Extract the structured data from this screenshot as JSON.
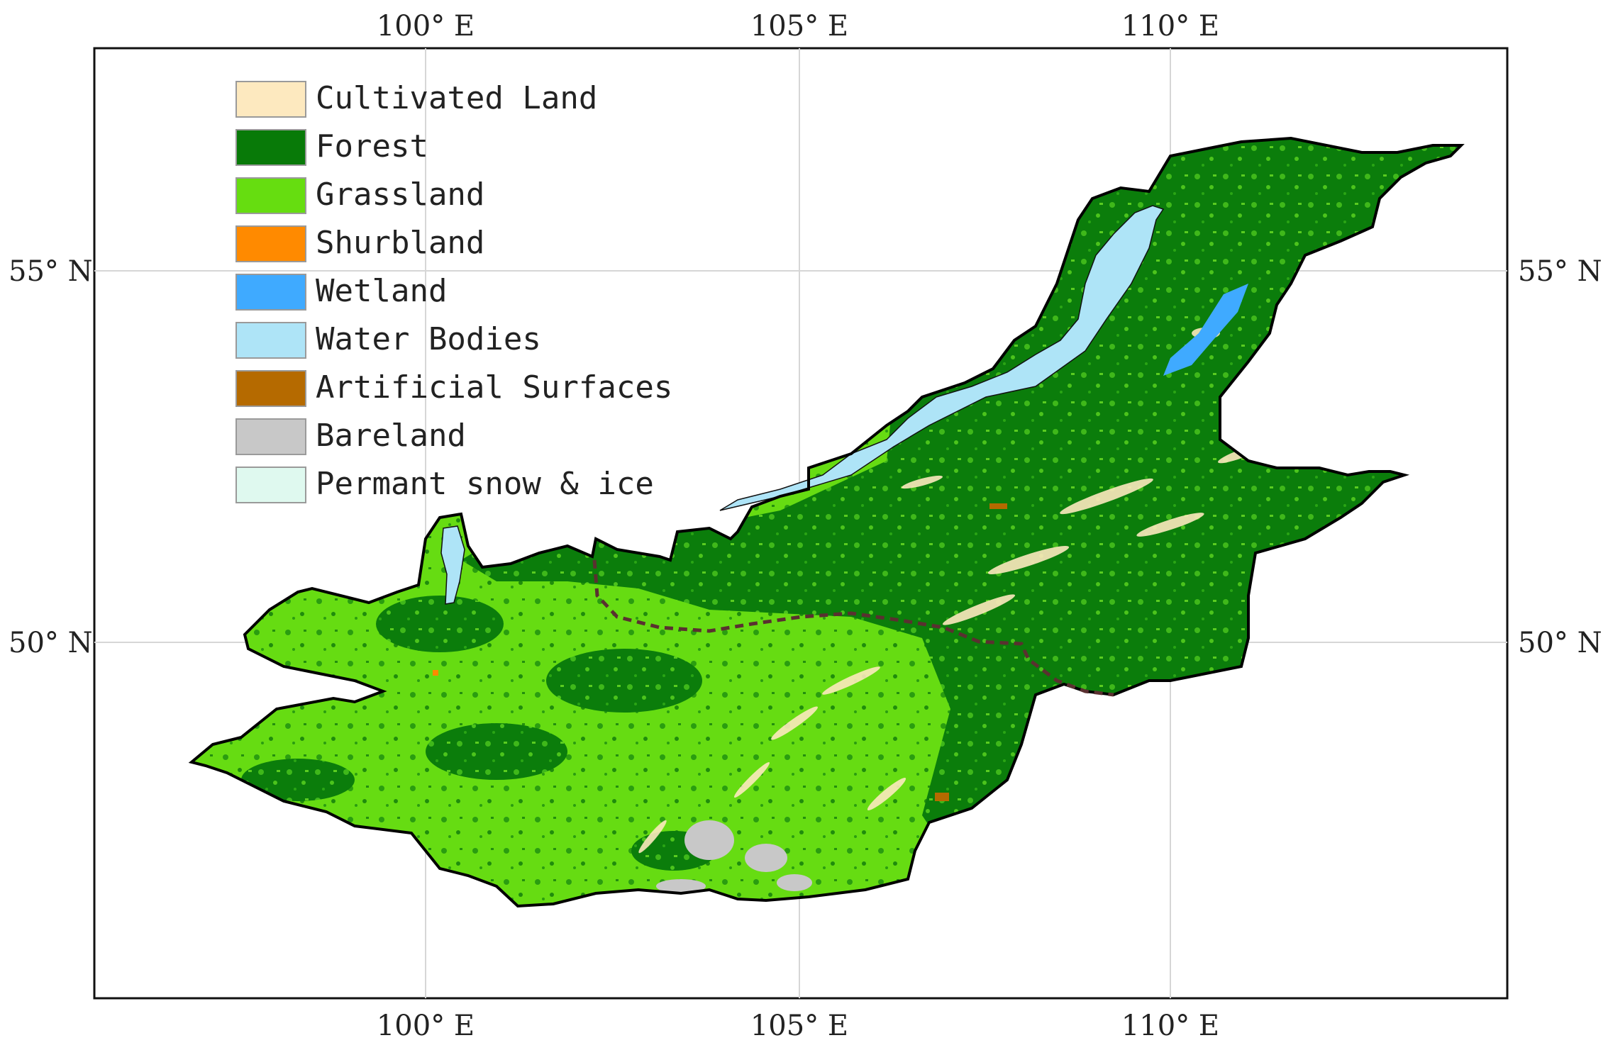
{
  "map": {
    "axes": {
      "top_labels": [
        "100° E",
        "105° E",
        "110° E"
      ],
      "bottom_labels": [
        "100° E",
        "105° E",
        "110° E"
      ],
      "left_labels": [
        "55° N",
        "50° N"
      ],
      "right_labels": [
        "55° N",
        "50° N"
      ]
    },
    "legend": [
      {
        "label": "Cultivated Land",
        "color": "#fde9bf"
      },
      {
        "label": "Forest",
        "color": "#087a08"
      },
      {
        "label": "Grassland",
        "color": "#66dd10"
      },
      {
        "label": "Shurbland",
        "color": "#ff8a00"
      },
      {
        "label": "Wetland",
        "color": "#3faaff"
      },
      {
        "label": "Water Bodies",
        "color": "#aee4f7"
      },
      {
        "label": "Artificial Surfaces",
        "color": "#b56a00"
      },
      {
        "label": "Bareland",
        "color": "#c8c8c8"
      },
      {
        "label": "Permant snow & ice",
        "color": "#dff9ef"
      }
    ],
    "colors": {
      "frame": "#111111",
      "gridline": "#d6d6d6",
      "boundary": "#000000",
      "border_dash": "#5a3030"
    }
  }
}
